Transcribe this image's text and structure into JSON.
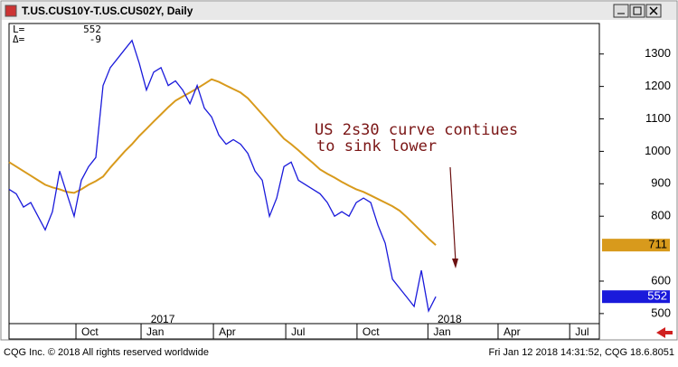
{
  "title": "T.US.CUS10Y-T.US.CUS02Y, Daily",
  "footer": {
    "left": "CQG Inc. © 2018 All rights reserved worldwide",
    "right": "Fri Jan 12 2018 14:31:52, CQG 18.6.8051"
  },
  "chart_data": {
    "type": "line",
    "info": [
      {
        "label": "L=",
        "value": 552
      },
      {
        "label": "Δ=",
        "value": -9
      }
    ],
    "annotation": [
      "US 2s30 curve contiues",
      "to sink lower"
    ],
    "xlim": [
      0,
      81.6
    ],
    "xticks": [
      {
        "value": 9.25,
        "label": "Oct"
      },
      {
        "value": 18.25,
        "label": "Jan"
      },
      {
        "value": 28.25,
        "label": "Apr"
      },
      {
        "value": 38.25,
        "label": "Jul"
      },
      {
        "value": 48.1,
        "label": "Oct"
      },
      {
        "value": 57.9,
        "label": "Jan"
      },
      {
        "value": 67.6,
        "label": "Apr"
      },
      {
        "value": 77.5,
        "label": "Jul"
      }
    ],
    "year_labels": [
      {
        "value": 18.25,
        "label": "2017"
      },
      {
        "value": 57.9,
        "label": "2018"
      }
    ],
    "ylim": [
      469,
      1394
    ],
    "yticks": [
      500,
      600,
      800,
      900,
      1000,
      1100,
      1200,
      1300
    ],
    "series": [
      {
        "color": "#1a1adb",
        "values": [
          883,
          869,
          828,
          842,
          800,
          758,
          814,
          939,
          869,
          800,
          911,
          953,
          981,
          1203,
          1258,
          1286,
          1314,
          1342,
          1272,
          1189,
          1244,
          1258,
          1203,
          1217,
          1189,
          1147,
          1203,
          1133,
          1106,
          1050,
          1022,
          1036,
          1022,
          994,
          939,
          911,
          800,
          856,
          953,
          967,
          911,
          897,
          883,
          869,
          842,
          800,
          814,
          800,
          842,
          856,
          842,
          772,
          717,
          606,
          578,
          550,
          522,
          633,
          508,
          552
        ]
      },
      {
        "color": "#d89a1c",
        "values": [
          967,
          953,
          939,
          925,
          911,
          897,
          889,
          883,
          875,
          872,
          883,
          897,
          908,
          922,
          950,
          975,
          1000,
          1022,
          1047,
          1069,
          1092,
          1114,
          1136,
          1156,
          1169,
          1181,
          1194,
          1208,
          1222,
          1214,
          1203,
          1192,
          1181,
          1164,
          1139,
          1114,
          1089,
          1064,
          1039,
          1022,
          1003,
          983,
          964,
          944,
          931,
          919,
          906,
          894,
          883,
          875,
          864,
          853,
          842,
          831,
          817,
          797,
          775,
          753,
          731,
          711
        ]
      }
    ]
  }
}
